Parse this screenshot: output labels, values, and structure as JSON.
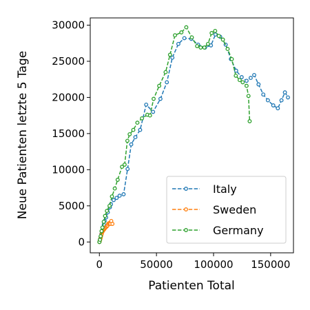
{
  "chart_data": {
    "type": "line",
    "title": "",
    "xlabel": "Patienten Total",
    "ylabel": "Neue Patienten letzte 5 Tage",
    "xlim": [
      -8000,
      170000
    ],
    "ylim": [
      -1500,
      31000
    ],
    "xticks": [
      0,
      50000,
      100000,
      150000
    ],
    "yticks": [
      0,
      5000,
      10000,
      15000,
      20000,
      25000,
      30000
    ],
    "grid": false,
    "legend_position": "lower-right",
    "series": [
      {
        "name": "Italy",
        "color": "#1f77b4",
        "points": [
          [
            0,
            0
          ],
          [
            300,
            200
          ],
          [
            650,
            400
          ],
          [
            1100,
            700
          ],
          [
            1700,
            1100
          ],
          [
            2500,
            1500
          ],
          [
            3100,
            2000
          ],
          [
            3900,
            2400
          ],
          [
            4600,
            2900
          ],
          [
            5900,
            3400
          ],
          [
            7400,
            4100
          ],
          [
            9200,
            4800
          ],
          [
            10100,
            5200
          ],
          [
            12500,
            5800
          ],
          [
            15100,
            6100
          ],
          [
            17700,
            6400
          ],
          [
            21200,
            6600
          ],
          [
            24700,
            10100
          ],
          [
            27900,
            13500
          ],
          [
            31500,
            14500
          ],
          [
            35700,
            15500
          ],
          [
            41000,
            19000
          ],
          [
            47000,
            18000
          ],
          [
            53500,
            19800
          ],
          [
            59100,
            22100
          ],
          [
            63900,
            25500
          ],
          [
            69200,
            27400
          ],
          [
            74400,
            28200
          ],
          [
            80500,
            28100
          ],
          [
            86500,
            27300
          ],
          [
            92500,
            26900
          ],
          [
            97700,
            27200
          ],
          [
            101700,
            28700
          ],
          [
            105800,
            28400
          ],
          [
            110600,
            27300
          ],
          [
            115200,
            25300
          ],
          [
            119800,
            23700
          ],
          [
            124600,
            22800
          ],
          [
            128900,
            22300
          ],
          [
            132500,
            22700
          ],
          [
            135600,
            23100
          ],
          [
            139400,
            21800
          ],
          [
            143600,
            20400
          ],
          [
            147600,
            19600
          ],
          [
            152300,
            18900
          ],
          [
            156300,
            18500
          ],
          [
            159500,
            19600
          ],
          [
            162500,
            20700
          ],
          [
            165200,
            20000
          ]
        ]
      },
      {
        "name": "Sweden",
        "color": "#ff7f0e",
        "points": [
          [
            0,
            0
          ],
          [
            300,
            150
          ],
          [
            600,
            300
          ],
          [
            1000,
            500
          ],
          [
            1300,
            700
          ],
          [
            1600,
            900
          ],
          [
            2000,
            1100
          ],
          [
            2300,
            1300
          ],
          [
            2600,
            1400
          ],
          [
            3000,
            1500
          ],
          [
            3400,
            1600
          ],
          [
            3700,
            1700
          ],
          [
            4000,
            1700
          ],
          [
            4400,
            1800
          ],
          [
            4800,
            1900
          ],
          [
            5500,
            2000
          ],
          [
            6100,
            2100
          ],
          [
            6800,
            2200
          ],
          [
            7200,
            2300
          ],
          [
            7700,
            2500
          ],
          [
            8400,
            2600
          ],
          [
            9100,
            2600
          ],
          [
            9700,
            2500
          ],
          [
            10400,
            2900
          ],
          [
            11400,
            2500
          ]
        ]
      },
      {
        "name": "Germany",
        "color": "#2ca02c",
        "points": [
          [
            0,
            0
          ],
          [
            500,
            300
          ],
          [
            1100,
            800
          ],
          [
            1900,
            1500
          ],
          [
            2700,
            2000
          ],
          [
            3800,
            2800
          ],
          [
            5000,
            3600
          ],
          [
            6600,
            4300
          ],
          [
            8900,
            5000
          ],
          [
            11000,
            6300
          ],
          [
            13500,
            7400
          ],
          [
            16000,
            8600
          ],
          [
            19800,
            10400
          ],
          [
            22100,
            10700
          ],
          [
            24500,
            14000
          ],
          [
            26500,
            14900
          ],
          [
            29700,
            15500
          ],
          [
            33300,
            16500
          ],
          [
            37300,
            17100
          ],
          [
            42000,
            17600
          ],
          [
            44300,
            17500
          ],
          [
            47500,
            19800
          ],
          [
            52400,
            21600
          ],
          [
            58000,
            23500
          ],
          [
            61900,
            25900
          ],
          [
            66200,
            28600
          ],
          [
            71800,
            29000
          ],
          [
            76100,
            29700
          ],
          [
            81000,
            28300
          ],
          [
            85600,
            27100
          ],
          [
            88700,
            26900
          ],
          [
            92000,
            26900
          ],
          [
            95100,
            27400
          ],
          [
            98300,
            28900
          ],
          [
            101400,
            29200
          ],
          [
            104600,
            28500
          ],
          [
            108200,
            28000
          ],
          [
            112300,
            26700
          ],
          [
            116000,
            25300
          ],
          [
            119500,
            23000
          ],
          [
            122900,
            22400
          ],
          [
            125500,
            22100
          ],
          [
            128900,
            21600
          ],
          [
            130600,
            20200
          ],
          [
            131600,
            16700
          ]
        ]
      }
    ]
  }
}
